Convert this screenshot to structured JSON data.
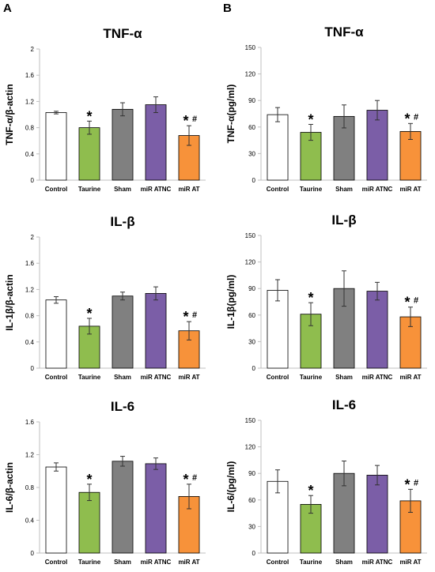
{
  "panel_labels": [
    "A",
    "B"
  ],
  "colors": {
    "Control": "#ffffff",
    "Taurine": "#8fbd4e",
    "Sham": "#808080",
    "miR ATNC": "#7b5ea7",
    "miR AT": "#f7923a",
    "axis": "#bfbfbf",
    "text": "#000000"
  },
  "chart_data": [
    {
      "type": "bar",
      "panel": "A",
      "title": "TNF-α",
      "ylabel": "TNF-α/β-actin",
      "xlabel": "",
      "categories": [
        "Control",
        "Taurine",
        "Sham",
        "miR ATNC",
        "miR AT"
      ],
      "values": [
        1.03,
        0.8,
        1.08,
        1.15,
        0.68
      ],
      "errors": [
        0.02,
        0.1,
        0.1,
        0.12,
        0.15
      ],
      "annotations": [
        "",
        "*",
        "",
        "",
        "*#"
      ],
      "ylim": [
        0,
        2
      ],
      "yticks": [
        "0",
        "0.4",
        "0.8",
        "1.2",
        "1.6",
        "2"
      ],
      "grid": false
    },
    {
      "type": "bar",
      "panel": "B",
      "title": "TNF-α",
      "ylabel": "TNF-α(pg/ml)",
      "xlabel": "",
      "categories": [
        "Control",
        "Taurine",
        "Sham",
        "miR ATNC",
        "miR AT"
      ],
      "values": [
        74,
        54,
        72,
        79,
        55
      ],
      "errors": [
        8,
        9,
        13,
        11,
        9
      ],
      "annotations": [
        "",
        "*",
        "",
        "",
        "*#"
      ],
      "ylim": [
        0,
        150
      ],
      "yticks": [
        "0",
        "30",
        "60",
        "90",
        "120",
        "150"
      ],
      "grid": false
    },
    {
      "type": "bar",
      "panel": "A",
      "title": "IL-β",
      "ylabel": "IL-1β/β-actin",
      "xlabel": "",
      "categories": [
        "Control",
        "Taurine",
        "Sham",
        "miR ATNC",
        "miR AT"
      ],
      "values": [
        1.04,
        0.64,
        1.1,
        1.14,
        0.57
      ],
      "errors": [
        0.05,
        0.12,
        0.06,
        0.1,
        0.14
      ],
      "annotations": [
        "",
        "*",
        "",
        "",
        "*#"
      ],
      "ylim": [
        0,
        2
      ],
      "yticks": [
        "0",
        "0.4",
        "0.8",
        "1.2",
        "1.6",
        "2"
      ],
      "grid": false
    },
    {
      "type": "bar",
      "panel": "B",
      "title": "IL-β",
      "ylabel": "IL-1β(pg/ml)",
      "xlabel": "",
      "categories": [
        "Control",
        "Taurine",
        "Sham",
        "miR ATNC",
        "miR AT"
      ],
      "values": [
        88,
        61,
        90,
        87,
        58
      ],
      "errors": [
        12,
        13,
        20,
        10,
        11
      ],
      "annotations": [
        "",
        "*",
        "",
        "",
        "*#"
      ],
      "ylim": [
        0,
        150
      ],
      "yticks": [
        "0",
        "30",
        "60",
        "90",
        "120",
        "150"
      ],
      "grid": false
    },
    {
      "type": "bar",
      "panel": "A",
      "title": "IL-6",
      "ylabel": "IL-6/β-actin",
      "xlabel": "",
      "categories": [
        "Control",
        "Taurine",
        "Sham",
        "miR ATNC",
        "miR AT"
      ],
      "values": [
        1.05,
        0.74,
        1.12,
        1.09,
        0.69
      ],
      "errors": [
        0.05,
        0.1,
        0.06,
        0.07,
        0.15
      ],
      "annotations": [
        "",
        "*",
        "",
        "",
        "*#"
      ],
      "ylim": [
        0,
        1.6
      ],
      "yticks": [
        "0",
        "0.4",
        "0.8",
        "1.2",
        "1.6"
      ],
      "grid": false
    },
    {
      "type": "bar",
      "panel": "B",
      "title": "IL-6",
      "ylabel": "IL-6/(pg/ml)",
      "xlabel": "",
      "categories": [
        "Control",
        "Taurine",
        "Sham",
        "miR ATNC",
        "miR AT"
      ],
      "values": [
        81,
        55,
        90,
        88,
        59
      ],
      "errors": [
        13,
        10,
        14,
        11,
        13
      ],
      "annotations": [
        "",
        "*",
        "",
        "",
        "*#"
      ],
      "ylim": [
        0,
        150
      ],
      "yticks": [
        "0",
        "30",
        "60",
        "90",
        "120",
        "150"
      ],
      "grid": false
    }
  ]
}
